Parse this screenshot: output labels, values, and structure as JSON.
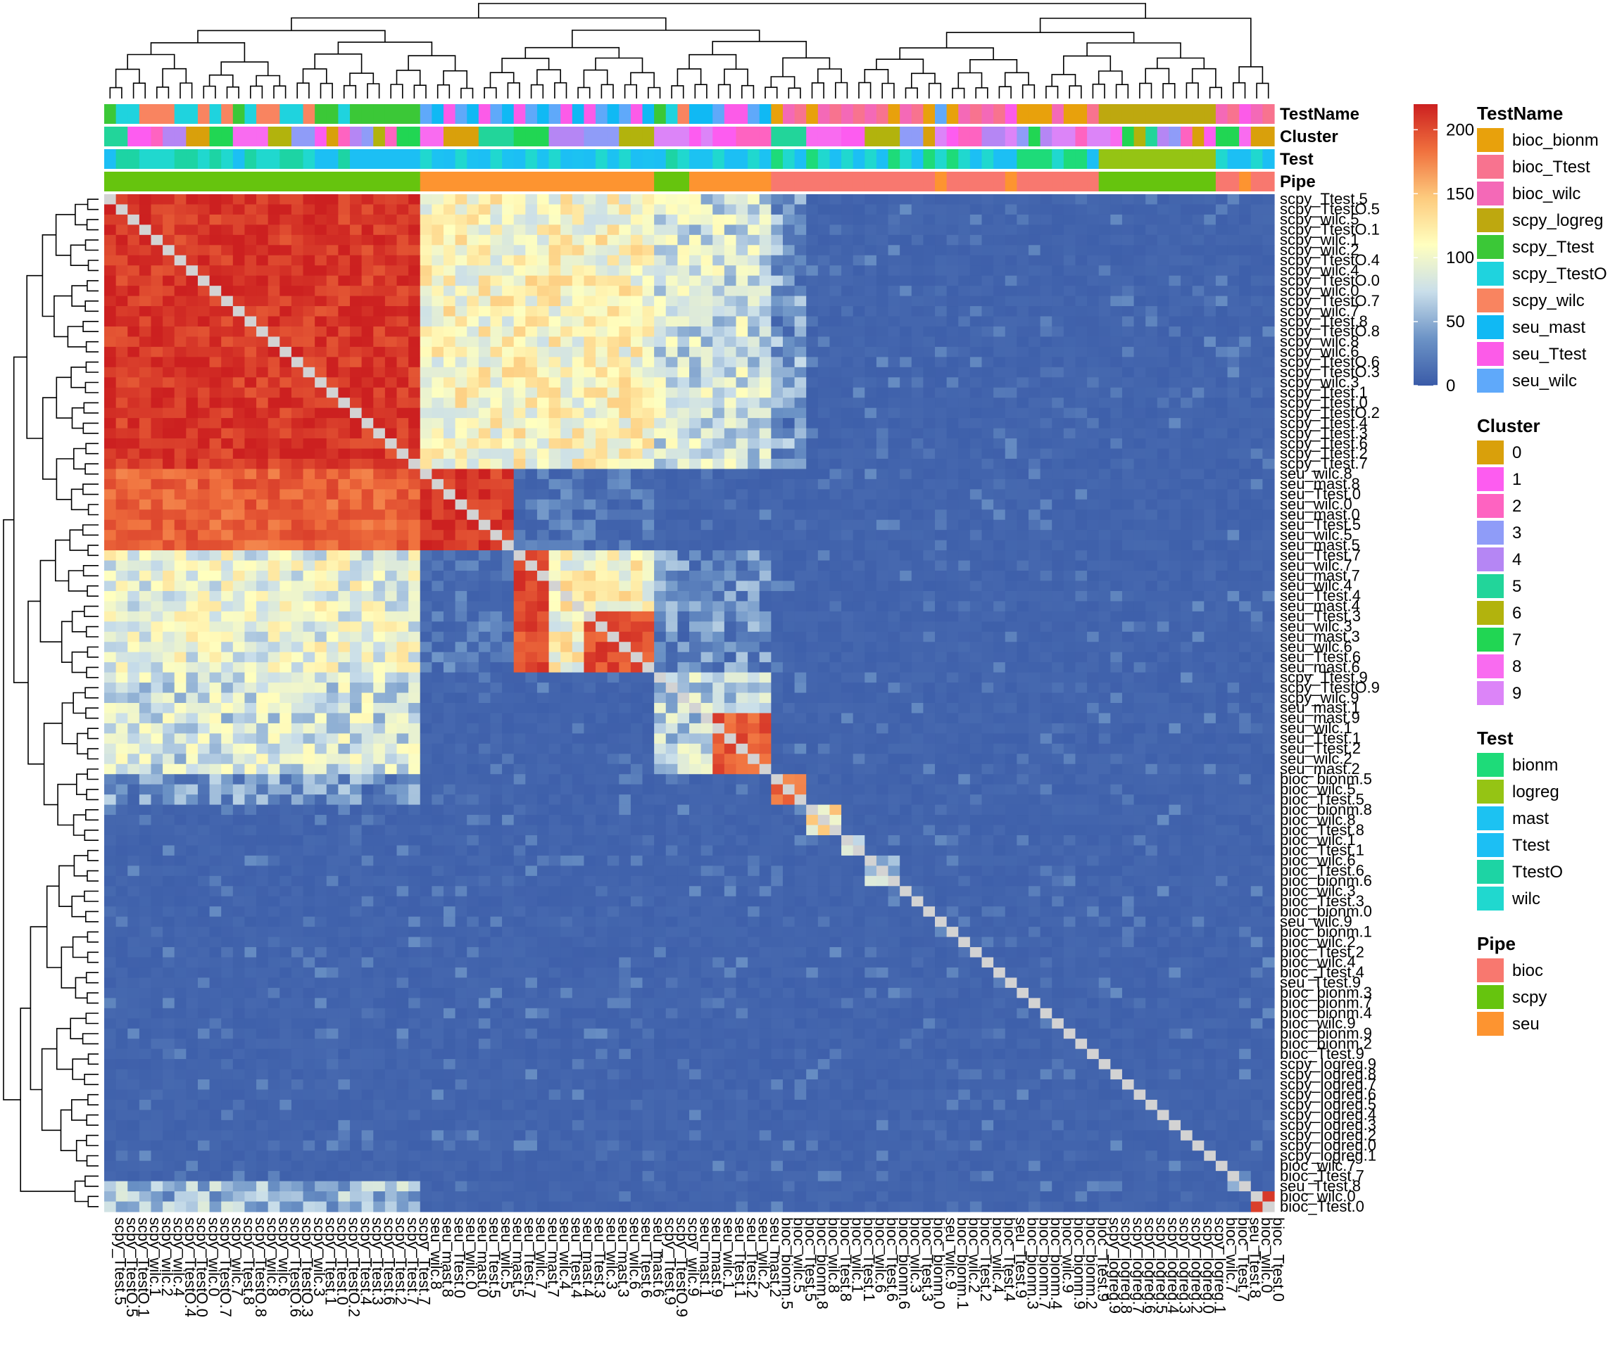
{
  "chart_data": {
    "type": "heatmap",
    "scale": {
      "min": 0,
      "max": 220,
      "ticks": [
        0,
        50,
        100,
        150,
        200
      ],
      "colors": [
        "#3A5BA8",
        "#6C93C6",
        "#C9DEEA",
        "#FFFFBF",
        "#FDCB7E",
        "#F0713E",
        "#CC2020"
      ],
      "diagonal_color": "#D3D3D3"
    },
    "rows": [
      "scpy_Ttest.5",
      "scpy_TtestO.5",
      "scpy_wilc.5",
      "scpy_TtestO.1",
      "scpy_wilc.1",
      "scpy_wilc.2",
      "scpy_TtestO.4",
      "scpy_wilc.4",
      "scpy_TtestO.0",
      "scpy_wilc.0",
      "scpy_TtestO.7",
      "scpy_wilc.7",
      "scpy_Ttest.8",
      "scpy_TtestO.8",
      "scpy_wilc.8",
      "scpy_wilc.6",
      "scpy_TtestO.6",
      "scpy_TtestO.3",
      "scpy_wilc.3",
      "scpy_Ttest.1",
      "scpy_Ttest.0",
      "scpy_TtestO.2",
      "scpy_Ttest.4",
      "scpy_Ttest.3",
      "scpy_Ttest.6",
      "scpy_Ttest.2",
      "scpy_Ttest.7",
      "seu_wilc.8",
      "seu_mast.8",
      "seu_Ttest.0",
      "seu_wilc.0",
      "seu_mast.0",
      "seu_Ttest.5",
      "seu_wilc.5",
      "seu_mast.5",
      "seu_Ttest.7",
      "seu_wilc.7",
      "seu_mast.7",
      "seu_wilc.4",
      "seu_Ttest.4",
      "seu_mast.4",
      "seu_Ttest.3",
      "seu_wilc.3",
      "seu_mast.3",
      "seu_wilc.6",
      "seu_Ttest.6",
      "seu_mast.6",
      "scpy_Ttest.9",
      "scpy_TtestO.9",
      "scpy_wilc.9",
      "seu_mast.1",
      "seu_mast.9",
      "seu_wilc.1",
      "seu_Ttest.1",
      "seu_Ttest.2",
      "seu_wilc.2",
      "seu_mast.2",
      "bioc_bionm.5",
      "bioc_wilc.5",
      "bioc_Ttest.5",
      "bioc_bionm.8",
      "bioc_wilc.8",
      "bioc_Ttest.8",
      "bioc_wilc.1",
      "bioc_Ttest.1",
      "bioc_wilc.6",
      "bioc_Ttest.6",
      "bioc_bionm.6",
      "bioc_wilc.3",
      "bioc_Ttest.3",
      "bioc_bionm.0",
      "seu_wilc.9",
      "bioc_bionm.1",
      "bioc_wilc.2",
      "bioc_Ttest.2",
      "bioc_wilc.4",
      "bioc_Ttest.4",
      "seu_Ttest.9",
      "bioc_bionm.3",
      "bioc_bionm.7",
      "bioc_bionm.4",
      "bioc_wilc.9",
      "bioc_bionm.9",
      "bioc_bionm.2",
      "bioc_Ttest.9",
      "scpy_logreg.9",
      "scpy_logreg.8",
      "scpy_logreg.7",
      "scpy_logreg.6",
      "scpy_logreg.5",
      "scpy_logreg.4",
      "scpy_logreg.3",
      "scpy_logreg.2",
      "scpy_logreg.0",
      "scpy_logreg.1",
      "bioc_wilc.7",
      "bioc_Ttest.7",
      "seu_Ttest.8",
      "bioc_wilc.0",
      "bioc_Ttest.0"
    ],
    "columns": [
      "scpy_Ttest.5",
      "scpy_TtestO.5",
      "scpy_TtestO.1",
      "scpy_wilc.1",
      "scpy_wilc.2",
      "scpy_wilc.4",
      "scpy_TtestO.4",
      "scpy_TtestO.0",
      "scpy_wilc.0",
      "scpy_TtestO.7",
      "scpy_wilc.7",
      "scpy_Ttest.8",
      "scpy_TtestO.8",
      "scpy_wilc.8",
      "scpy_wilc.6",
      "scpy_TtestO.6",
      "scpy_TtestO.3",
      "scpy_wilc.3",
      "scpy_Ttest.1",
      "scpy_Ttest.0",
      "scpy_TtestO.2",
      "scpy_Ttest.4",
      "scpy_Ttest.3",
      "scpy_Ttest.6",
      "scpy_Ttest.2",
      "scpy_Ttest.7",
      "scpy_Ttest.7",
      "seu_wilc.8",
      "seu_mast.8",
      "seu_Ttest.0",
      "seu_wilc.0",
      "seu_mast.0",
      "seu_Ttest.5",
      "seu_wilc.5",
      "seu_mast.5",
      "seu_Ttest.7",
      "seu_wilc.7",
      "seu_mast.7",
      "seu_wilc.4",
      "seu_Ttest.4",
      "seu_mast.4",
      "seu_Ttest.3",
      "seu_wilc.3",
      "seu_mast.3",
      "seu_wilc.6",
      "seu_Ttest.6",
      "seu_mast.6",
      "scpy_Ttest.9",
      "scpy_TtestO.9",
      "scpy_wilc.9",
      "seu_mast.1",
      "seu_mast.9",
      "seu_wilc.1",
      "seu_Ttest.1",
      "seu_Ttest.2",
      "seu_wilc.2",
      "seu_mast.2",
      "bioc_bionm.5",
      "bioc_wilc.5",
      "bioc_Ttest.5",
      "bioc_bionm.8",
      "bioc_wilc.8",
      "bioc_Ttest.8",
      "bioc_wilc.1",
      "bioc_Ttest.1",
      "bioc_wilc.6",
      "bioc_Ttest.6",
      "bioc_bionm.6",
      "bioc_wilc.3",
      "bioc_Ttest.3",
      "bioc_bionm.0",
      "seu_wilc.9",
      "bioc_bionm.1",
      "bioc_wilc.2",
      "bioc_Ttest.2",
      "bioc_wilc.4",
      "bioc_Ttest.4",
      "seu_Ttest.9",
      "bioc_bionm.3",
      "bioc_bionm.7",
      "bioc_bionm.4",
      "bioc_wilc.9",
      "bioc_bionm.9",
      "bioc_bionm.2",
      "bioc_Ttest.9",
      "scpy_logreg.9",
      "scpy_logreg.8",
      "scpy_logreg.7",
      "scpy_logreg.6",
      "scpy_logreg.5",
      "scpy_logreg.4",
      "scpy_logreg.3",
      "scpy_logreg.2",
      "scpy_logreg.0",
      "scpy_logreg.1",
      "bioc_wilc.7",
      "bioc_Ttest.7",
      "seu_Ttest.8",
      "bioc_wilc.0",
      "bioc_Ttest.0"
    ],
    "blocks": [
      {
        "rows": [
          0,
          26
        ],
        "cols": [
          0,
          26
        ],
        "value": 210
      },
      {
        "rows": [
          0,
          26
        ],
        "cols": [
          27,
          46
        ],
        "value": 110
      },
      {
        "rows": [
          27,
          34
        ],
        "cols": [
          0,
          26
        ],
        "value": 190
      },
      {
        "rows": [
          27,
          34
        ],
        "cols": [
          27,
          34
        ],
        "value": 210
      },
      {
        "rows": [
          27,
          34
        ],
        "cols": [
          35,
          46
        ],
        "value": 5
      },
      {
        "rows": [
          35,
          46
        ],
        "cols": [
          0,
          26
        ],
        "value": 95
      },
      {
        "rows": [
          35,
          46
        ],
        "cols": [
          27,
          34
        ],
        "value": 5
      },
      {
        "rows": [
          35,
          46
        ],
        "cols": [
          35,
          46
        ],
        "value": 110
      },
      {
        "rows": [
          47,
          56
        ],
        "cols": [
          0,
          26
        ],
        "value": 80
      },
      {
        "rows": [
          47,
          56
        ],
        "cols": [
          47,
          56
        ],
        "value": 70
      },
      {
        "rows": [
          35,
          46
        ],
        "cols": [
          47,
          56
        ],
        "value": 30
      },
      {
        "rows": [
          0,
          26
        ],
        "cols": [
          47,
          56
        ],
        "value": 80
      },
      {
        "rows": [
          35,
          46
        ],
        "cols": [
          35,
          37
        ],
        "value": 200
      },
      {
        "rows": [
          41,
          46
        ],
        "cols": [
          41,
          46
        ],
        "value": 200
      },
      {
        "rows": [
          51,
          56
        ],
        "cols": [
          52,
          56
        ],
        "value": 195
      },
      {
        "rows": [
          57,
          59
        ],
        "cols": [
          57,
          59
        ],
        "value": 185
      },
      {
        "rows": [
          57,
          59
        ],
        "cols": [
          0,
          26
        ],
        "value": 35
      },
      {
        "rows": [
          0,
          26
        ],
        "cols": [
          57,
          59
        ],
        "value": 40
      },
      {
        "rows": [
          60,
          62
        ],
        "cols": [
          60,
          62
        ],
        "value": 120
      },
      {
        "rows": [
          63,
          64
        ],
        "cols": [
          63,
          64
        ],
        "value": 100
      },
      {
        "rows": [
          65,
          67
        ],
        "cols": [
          65,
          67
        ],
        "value": 60
      },
      {
        "rows": [
          96,
          97
        ],
        "cols": [
          96,
          97
        ],
        "value": 60
      },
      {
        "rows": [
          97,
          99
        ],
        "cols": [
          0,
          26
        ],
        "value": 55
      },
      {
        "rows": [
          98,
          99
        ],
        "cols": [
          98,
          99
        ],
        "value": 200
      }
    ],
    "base_value": 3
  },
  "column_annotations": {
    "tracks": [
      "TestName",
      "Cluster",
      "Test",
      "Pipe"
    ]
  },
  "legends": [
    {
      "title": "TestName",
      "items": [
        {
          "label": "bioc_bionm",
          "color": "#E8A10C"
        },
        {
          "label": "bioc_Ttest",
          "color": "#F8738F"
        },
        {
          "label": "bioc_wilc",
          "color": "#F469B7"
        },
        {
          "label": "scpy_logreg",
          "color": "#BEA80F"
        },
        {
          "label": "scpy_Ttest",
          "color": "#3BC837"
        },
        {
          "label": "scpy_TtestO",
          "color": "#1FD3DE"
        },
        {
          "label": "scpy_wilc",
          "color": "#F98460"
        },
        {
          "label": "seu_mast",
          "color": "#10B9F4"
        },
        {
          "label": "seu_Ttest",
          "color": "#FC5BE8"
        },
        {
          "label": "seu_wilc",
          "color": "#5FA9FA"
        }
      ]
    },
    {
      "title": "Cluster",
      "items": [
        {
          "label": "0",
          "color": "#D9A00B"
        },
        {
          "label": "1",
          "color": "#FD5CF0"
        },
        {
          "label": "2",
          "color": "#FE63C1"
        },
        {
          "label": "3",
          "color": "#8F9CF8"
        },
        {
          "label": "4",
          "color": "#B586F4"
        },
        {
          "label": "5",
          "color": "#22D59A"
        },
        {
          "label": "6",
          "color": "#B2B30D"
        },
        {
          "label": "7",
          "color": "#21D653"
        },
        {
          "label": "8",
          "color": "#F96BF0"
        },
        {
          "label": "9",
          "color": "#DC84F8"
        }
      ]
    },
    {
      "title": "Test",
      "items": [
        {
          "label": "bionm",
          "color": "#1EDB79"
        },
        {
          "label": "logreg",
          "color": "#95C414"
        },
        {
          "label": "mast",
          "color": "#1CC2F2"
        },
        {
          "label": "Ttest",
          "color": "#1CBFF4"
        },
        {
          "label": "TtestO",
          "color": "#1DD4A4"
        },
        {
          "label": "wilc",
          "color": "#20D8CF"
        }
      ]
    },
    {
      "title": "Pipe",
      "items": [
        {
          "label": "bioc",
          "color": "#F8786F"
        },
        {
          "label": "scpy",
          "color": "#66C40E"
        },
        {
          "label": "seu",
          "color": "#FD9430"
        }
      ]
    }
  ]
}
